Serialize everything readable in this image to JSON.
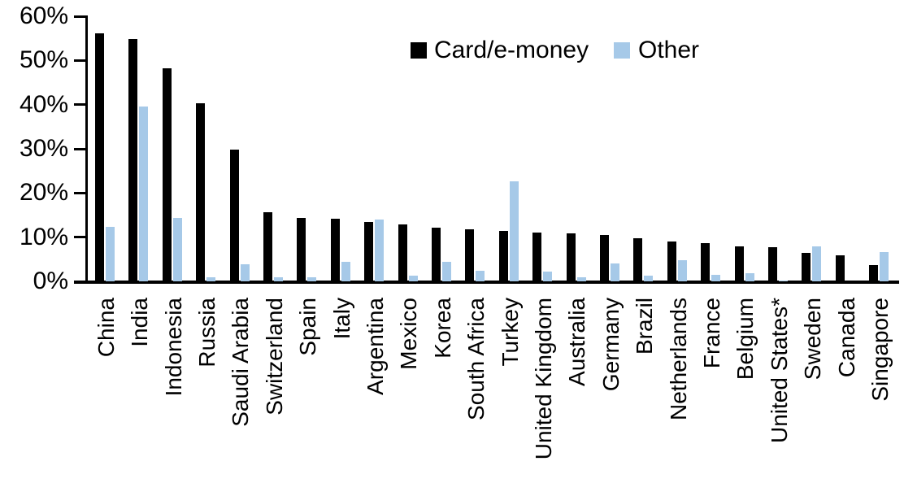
{
  "chart_data": {
    "type": "bar",
    "title": "",
    "xlabel": "",
    "ylabel": "",
    "ylim": [
      0,
      60
    ],
    "ytick_labels": [
      "0%",
      "10%",
      "20%",
      "30%",
      "40%",
      "50%",
      "60%"
    ],
    "grid": false,
    "legend_position": "top-center",
    "categories": [
      "China",
      "India",
      "Indonesia",
      "Russia",
      "Saudi Arabia",
      "Switzerland",
      "Spain",
      "Italy",
      "Argentina",
      "Mexico",
      "Korea",
      "South Africa",
      "Turkey",
      "United Kingdom",
      "Australia",
      "Germany",
      "Brazil",
      "Netherlands",
      "France",
      "Belgium",
      "United States*",
      "Sweden",
      "Canada",
      "Singapore"
    ],
    "series": [
      {
        "name": "Card/e-money",
        "color": "#000000",
        "values": [
          56.2,
          54.9,
          48.2,
          40.3,
          29.9,
          15.6,
          14.3,
          14.1,
          13.4,
          12.9,
          12.2,
          11.7,
          11.5,
          11.0,
          10.8,
          10.5,
          9.8,
          9.1,
          8.6,
          8.0,
          7.8,
          6.4,
          5.8,
          3.7
        ]
      },
      {
        "name": "Other",
        "color": "#a6c9e8",
        "values": [
          12.3,
          39.6,
          14.4,
          1.0,
          3.9,
          0.9,
          1.0,
          4.5,
          13.9,
          1.3,
          4.5,
          2.4,
          22.6,
          2.3,
          0.9,
          4.0,
          1.2,
          4.7,
          1.4,
          1.9,
          0.2,
          7.9,
          0.0,
          6.7
        ]
      }
    ]
  }
}
